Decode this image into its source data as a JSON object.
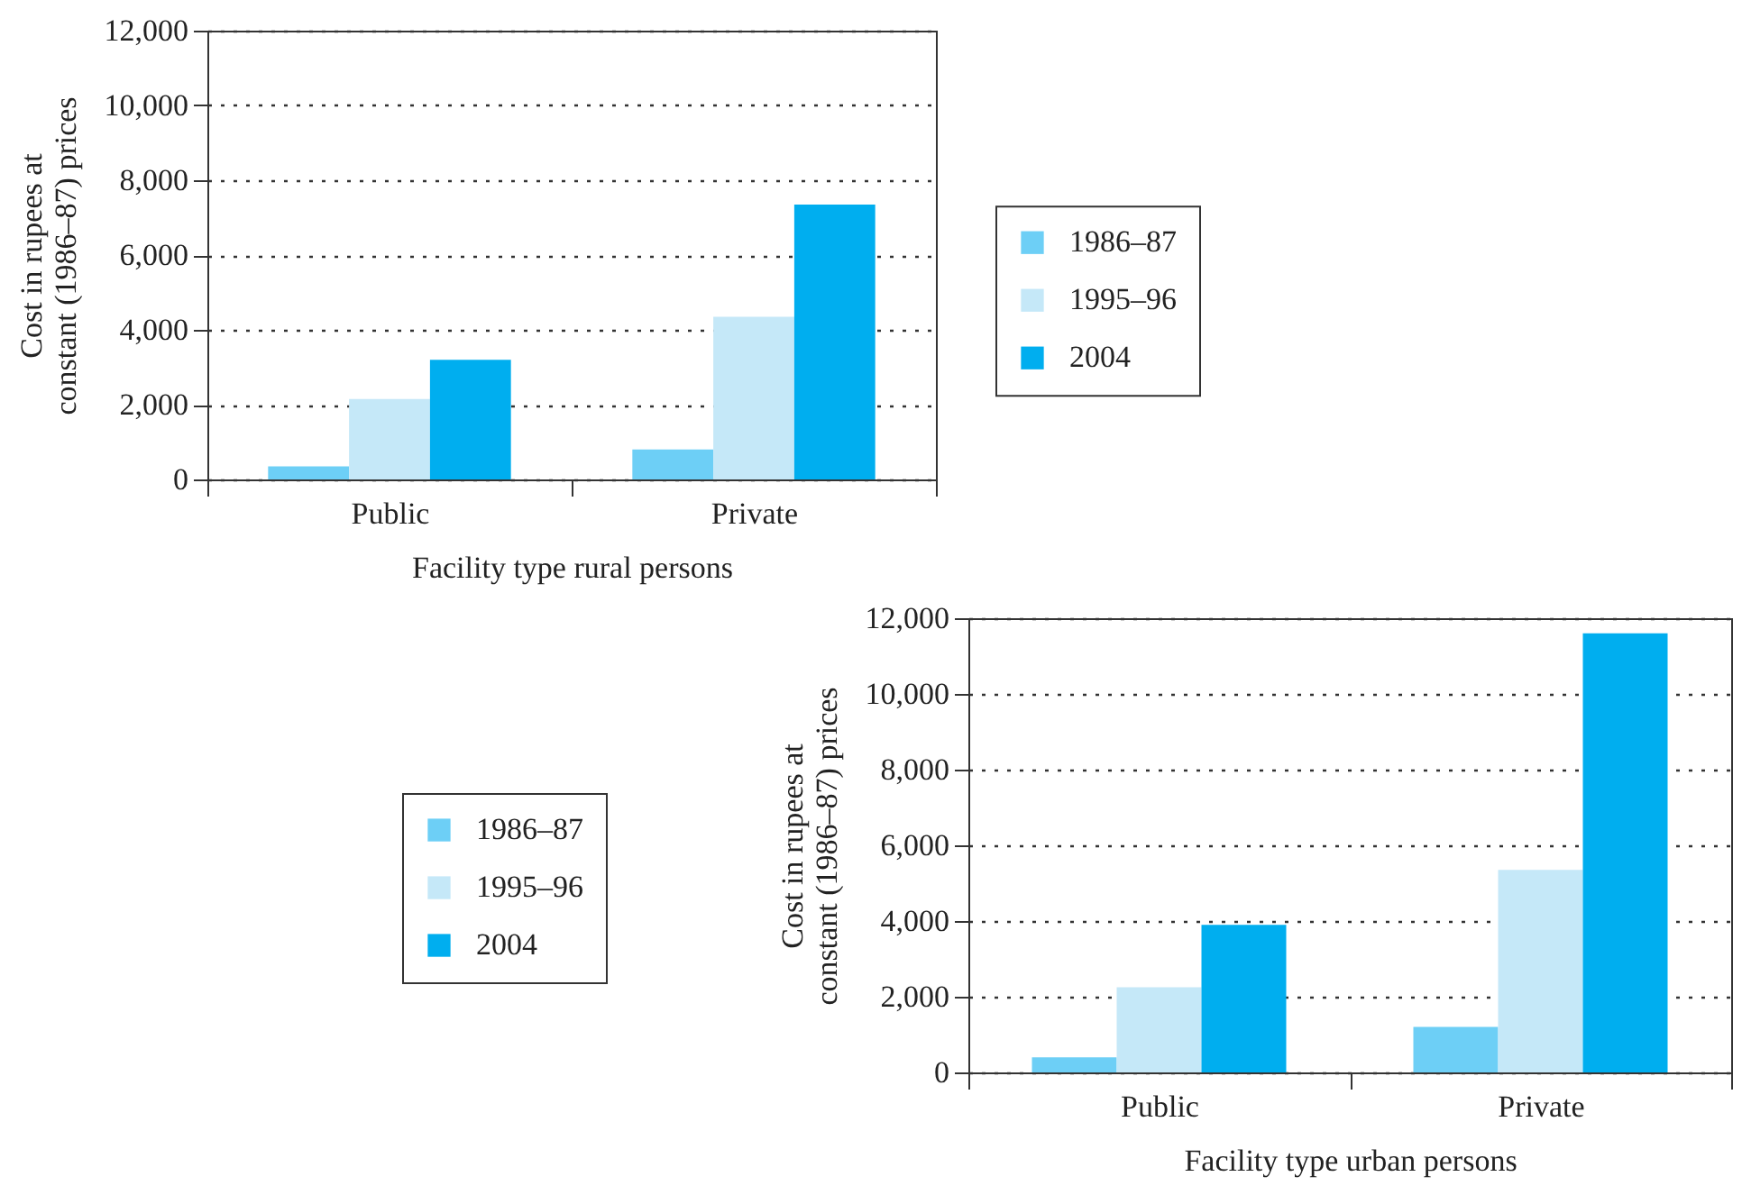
{
  "chart_data": [
    {
      "type": "bar",
      "categories": [
        "Public",
        "Private"
      ],
      "xlabel": "Facility type rural persons",
      "ylabel": "Cost in rupees at constant (1986–87) prices",
      "ylim": [
        0,
        12000
      ],
      "yticks": [
        0,
        {
          "value": 2000,
          "label": "2,000"
        },
        {
          "value": 4000,
          "label": "4,000"
        },
        {
          "value": 6000,
          "label": "6,000"
        },
        {
          "value": 8000,
          "label": "8,000"
        },
        {
          "value": 10000,
          "label": "10,000"
        },
        {
          "value": 12000,
          "label": "12,000"
        }
      ],
      "grid": "y",
      "legend": "right",
      "series": [
        {
          "name": "1986–87",
          "color": "#6dcff6",
          "values": [
            350,
            800
          ]
        },
        {
          "name": "1995–96",
          "color": "#c5e8f8",
          "values": [
            2150,
            4350
          ]
        },
        {
          "name": "2004",
          "color": "#00aeef",
          "values": [
            3200,
            7350
          ]
        }
      ]
    },
    {
      "type": "bar",
      "categories": [
        "Public",
        "Private"
      ],
      "xlabel": "Facility type urban persons",
      "ylabel": "Cost in rupees at constant (1986–87) prices",
      "ylim": [
        0,
        12000
      ],
      "yticks": [
        0,
        {
          "value": 2000,
          "label": "2,000"
        },
        {
          "value": 4000,
          "label": "4,000"
        },
        {
          "value": 6000,
          "label": "6,000"
        },
        {
          "value": 8000,
          "label": "8,000"
        },
        {
          "value": 10000,
          "label": "10,000"
        },
        {
          "value": 12000,
          "label": "12,000"
        }
      ],
      "grid": "y",
      "legend": "left",
      "series": [
        {
          "name": "1986–87",
          "color": "#6dcff6",
          "values": [
            400,
            1200
          ]
        },
        {
          "name": "1995–96",
          "color": "#c5e8f8",
          "values": [
            2250,
            5350
          ]
        },
        {
          "name": "2004",
          "color": "#00aeef",
          "values": [
            3900,
            11600
          ]
        }
      ]
    }
  ]
}
